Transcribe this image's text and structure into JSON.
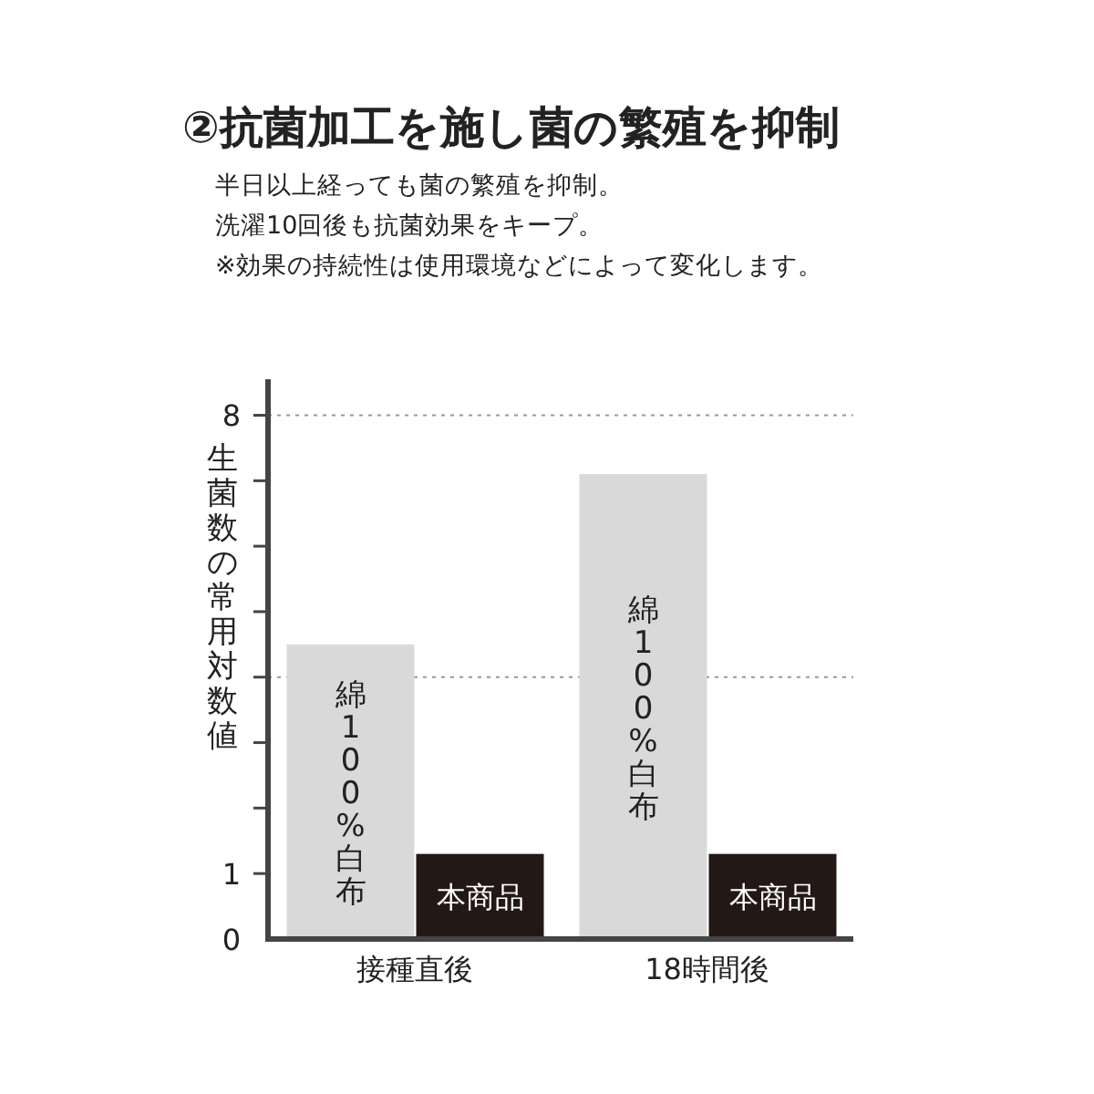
{
  "chart_data": {
    "type": "bar",
    "title": "②抗菌加工を施し菌の繁殖を抑制",
    "subtitle": "半日以上経っても菌の繁殖を抑制。",
    "annotations": [
      "洗濯10回後も抗菌効果をキープ。",
      "※効果の持続性は使用環境などによって変化します。"
    ],
    "ylabel": "生菌数の常用対数値",
    "categories": [
      "接種直後",
      "18時間後"
    ],
    "series": [
      {
        "name": "綿100%白布",
        "color": "#d9d9d9",
        "values": [
          4.5,
          7.1
        ]
      },
      {
        "name": "本商品",
        "color": "#231815",
        "values": [
          1.3,
          1.3
        ]
      }
    ],
    "ylim": [
      0,
      8.55
    ],
    "yticks": [
      0,
      1,
      {
        "value": 2,
        "label": null
      },
      {
        "value": 3,
        "label": null
      },
      {
        "value": 4,
        "label": null
      },
      {
        "value": 5,
        "label": null
      },
      {
        "value": 6,
        "label": null
      },
      {
        "value": 7,
        "label": null
      },
      8
    ],
    "ref_lines": [
      {
        "axis": "y",
        "value": 8,
        "color": "#999999",
        "line_style": "dotted"
      },
      {
        "axis": "y",
        "value": 4,
        "color": "#999999",
        "line_style": "dotted"
      }
    ],
    "grid": false,
    "legend": false
  }
}
